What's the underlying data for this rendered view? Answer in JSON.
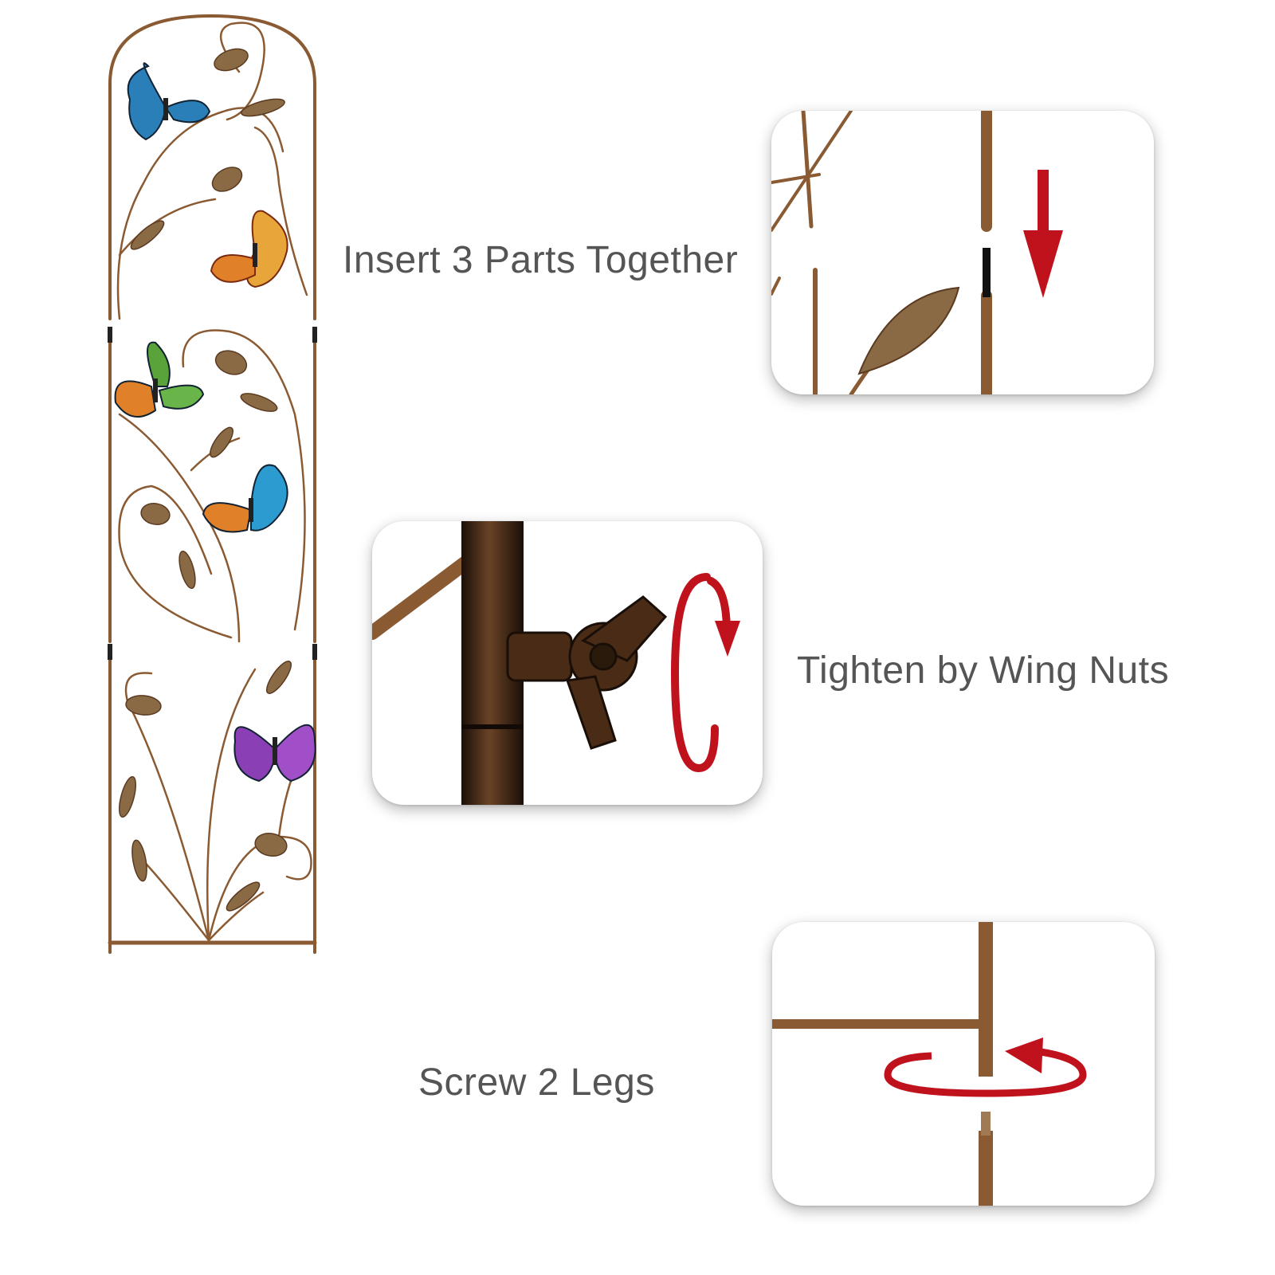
{
  "steps": [
    {
      "label": "Insert 3 Parts Together"
    },
    {
      "label": "Tighten by Wing Nuts"
    },
    {
      "label": "Screw 2 Legs"
    }
  ],
  "colors": {
    "bronze": "#8a5a32",
    "bronze_dark": "#5a3a20",
    "arrow_red": "#c0121c",
    "text": "#555555",
    "butterfly_blue": "#2b7fb8",
    "butterfly_orange": "#e0812a",
    "butterfly_green": "#5aa33a",
    "butterfly_purple": "#8a3fb5"
  },
  "icons": {
    "insert": "arrow-down-icon",
    "tighten": "rotate-vertical-icon",
    "screw": "rotate-horizontal-icon"
  }
}
